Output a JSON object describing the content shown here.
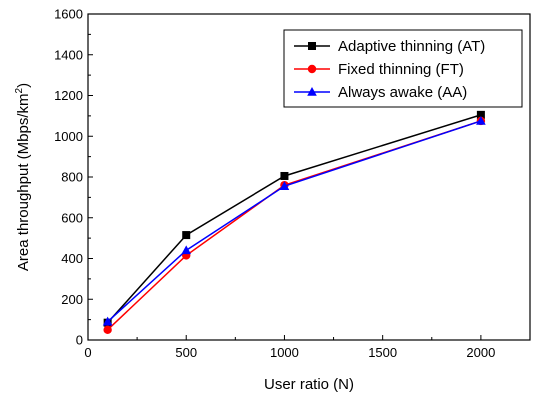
{
  "chart_data": {
    "type": "line",
    "xlabel": "User ratio (N)",
    "ylabel_main": "Area throughput (Mbps/km",
    "ylabel_sup": "2",
    "ylabel_close": ")",
    "xlim": [
      0,
      2250
    ],
    "ylim": [
      0,
      1600
    ],
    "xticks": [
      0,
      500,
      1000,
      1500,
      2000
    ],
    "yticks": [
      0,
      200,
      400,
      600,
      800,
      1000,
      1200,
      1400,
      1600
    ],
    "legend_position": "top-right",
    "series": [
      {
        "name": "Adaptive thinning (AT)",
        "color": "#000000",
        "marker": "square",
        "x": [
          100,
          500,
          1000,
          2000
        ],
        "y": [
          85,
          515,
          805,
          1105
        ]
      },
      {
        "name": "Fixed thinning (FT)",
        "color": "#ff0000",
        "marker": "circle",
        "x": [
          100,
          500,
          1000,
          2000
        ],
        "y": [
          50,
          415,
          760,
          1075
        ]
      },
      {
        "name": "Always awake (AA)",
        "color": "#0000ff",
        "marker": "triangle",
        "x": [
          100,
          500,
          1000,
          2000
        ],
        "y": [
          90,
          440,
          755,
          1075
        ]
      }
    ]
  }
}
